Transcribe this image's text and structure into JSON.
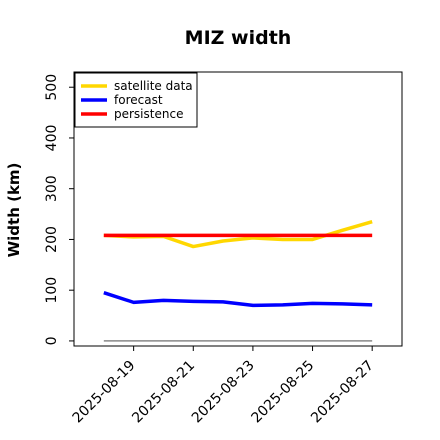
{
  "chart_data": {
    "type": "line",
    "title": "MIZ width",
    "xlabel": "",
    "ylabel": "Width (km)",
    "ylim": [
      -10,
      530
    ],
    "yticks": [
      0,
      100,
      200,
      300,
      400,
      500
    ],
    "x": [
      "2025-08-18",
      "2025-08-19",
      "2025-08-20",
      "2025-08-21",
      "2025-08-22",
      "2025-08-23",
      "2025-08-24",
      "2025-08-25",
      "2025-08-26",
      "2025-08-27"
    ],
    "xlim": [
      "2025-08-17",
      "2025-08-28"
    ],
    "xticks": [
      "2025-08-19",
      "2025-08-21",
      "2025-08-23",
      "2025-08-25",
      "2025-08-27"
    ],
    "highlighted_tick": "2025-08-19",
    "highlight_color": "#228B22",
    "series": [
      {
        "name": "satellite data",
        "color": "#FFD700",
        "values": [
          208,
          205,
          206,
          186,
          197,
          203,
          200,
          200,
          218,
          235
        ]
      },
      {
        "name": "forecast",
        "color": "#0000FF",
        "values": [
          95,
          76,
          80,
          78,
          77,
          70,
          71,
          74,
          73,
          71
        ]
      },
      {
        "name": "persistence",
        "color": "#FF0000",
        "values": [
          208,
          208,
          208,
          208,
          208,
          208,
          208,
          208,
          208,
          208
        ]
      }
    ],
    "reference_line": {
      "value": 0,
      "color": "#888888"
    },
    "legend_position": "top-left",
    "grid": false
  }
}
